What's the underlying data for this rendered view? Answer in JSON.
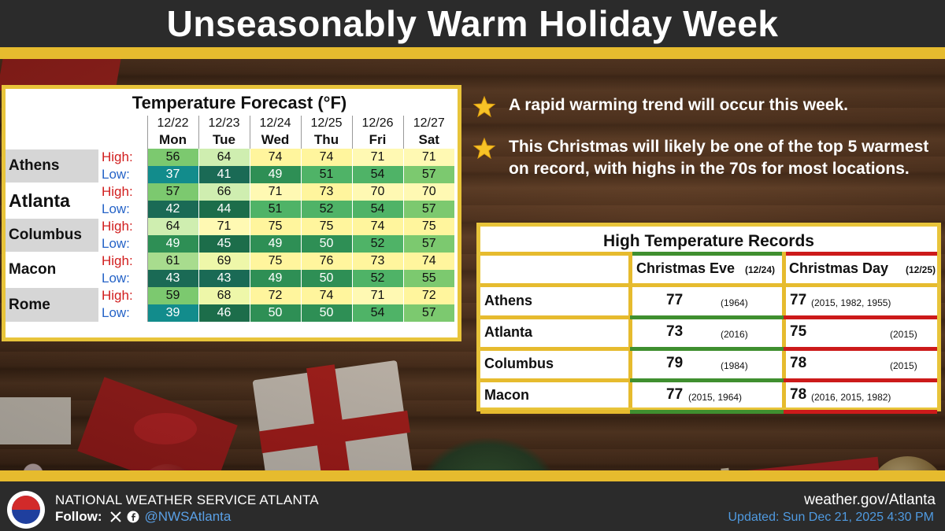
{
  "title": "Unseasonably Warm Holiday Week",
  "forecast": {
    "title": "Temperature Forecast (°F)",
    "dates": [
      "12/22",
      "12/23",
      "12/24",
      "12/25",
      "12/26",
      "12/27"
    ],
    "days": [
      "Mon",
      "Tue",
      "Wed",
      "Thu",
      "Fri",
      "Sat"
    ],
    "high_label": "High:",
    "low_label": "Low:",
    "cities": [
      {
        "name": "Athens",
        "high": [
          "56",
          "64",
          "74",
          "74",
          "71",
          "71"
        ],
        "low": [
          "37",
          "41",
          "49",
          "51",
          "54",
          "57"
        ]
      },
      {
        "name": "Atlanta",
        "high": [
          "57",
          "66",
          "71",
          "73",
          "70",
          "70"
        ],
        "low": [
          "42",
          "44",
          "51",
          "52",
          "54",
          "57"
        ]
      },
      {
        "name": "Columbus",
        "high": [
          "64",
          "71",
          "75",
          "75",
          "74",
          "75"
        ],
        "low": [
          "49",
          "45",
          "49",
          "50",
          "52",
          "57"
        ]
      },
      {
        "name": "Macon",
        "high": [
          "61",
          "69",
          "75",
          "76",
          "73",
          "74"
        ],
        "low": [
          "43",
          "43",
          "49",
          "50",
          "52",
          "55"
        ]
      },
      {
        "name": "Rome",
        "high": [
          "59",
          "68",
          "72",
          "74",
          "71",
          "72"
        ],
        "low": [
          "39",
          "46",
          "50",
          "50",
          "54",
          "57"
        ]
      }
    ]
  },
  "bullets": [
    "A rapid warming trend will occur this week.",
    "This Christmas will likely be one of the top 5 warmest on record, with highs in the 70s for most locations."
  ],
  "records": {
    "title": "High Temperature Records",
    "eve_header": "Christmas Eve",
    "eve_date": "(12/24)",
    "day_header": "Christmas Day",
    "day_date": "(12/25)",
    "rows": [
      {
        "city": "Athens",
        "eve": "77",
        "eve_years": "(1964)",
        "day": "77",
        "day_years": "(2015, 1982, 1955)"
      },
      {
        "city": "Atlanta",
        "eve": "73",
        "eve_years": "(2016)",
        "day": "75",
        "day_years": "(2015)"
      },
      {
        "city": "Columbus",
        "eve": "79",
        "eve_years": "(1984)",
        "day": "78",
        "day_years": "(2015)"
      },
      {
        "city": "Macon",
        "eve": "77",
        "eve_years": "(2015, 1964)",
        "day": "78",
        "day_years": "(2016, 2015, 1982)"
      }
    ]
  },
  "footer": {
    "agency": "NATIONAL WEATHER SERVICE ATLANTA",
    "follow_label": "Follow:",
    "handle": "@NWSAtlanta",
    "website": "weather.gov/Atlanta",
    "updated": "Updated: Sun Dec 21, 2025 4:30 PM"
  },
  "colors": {
    "gold": "#e6bb2e",
    "eve_accent": "#3f8f2f",
    "day_accent": "#cc1a1a"
  }
}
